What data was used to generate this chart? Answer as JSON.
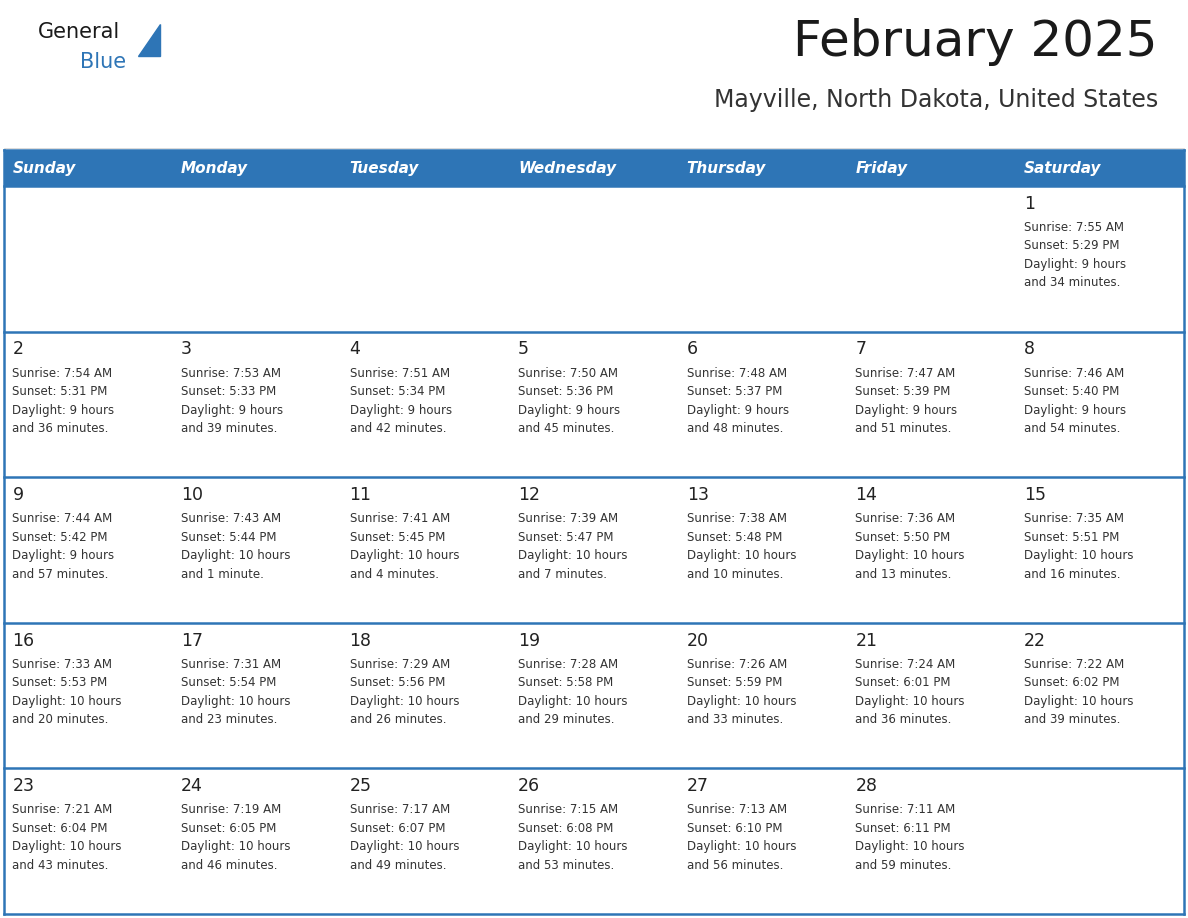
{
  "title": "February 2025",
  "subtitle": "Mayville, North Dakota, United States",
  "days_of_week": [
    "Sunday",
    "Monday",
    "Tuesday",
    "Wednesday",
    "Thursday",
    "Friday",
    "Saturday"
  ],
  "header_bg": "#2E75B6",
  "header_text_color": "#FFFFFF",
  "row_bg": "#FFFFFF",
  "row_bg_first": "#F2F2F2",
  "cell_border_color": "#2E75B6",
  "day_number_color": "#222222",
  "info_text_color": "#333333",
  "title_color": "#1a1a1a",
  "subtitle_color": "#333333",
  "logo_general_color": "#1a1a1a",
  "logo_blue_color": "#2E75B6",
  "background_color": "#FFFFFF",
  "weeks": [
    [
      {
        "day": null,
        "info": null
      },
      {
        "day": null,
        "info": null
      },
      {
        "day": null,
        "info": null
      },
      {
        "day": null,
        "info": null
      },
      {
        "day": null,
        "info": null
      },
      {
        "day": null,
        "info": null
      },
      {
        "day": 1,
        "info": "Sunrise: 7:55 AM\nSunset: 5:29 PM\nDaylight: 9 hours\nand 34 minutes."
      }
    ],
    [
      {
        "day": 2,
        "info": "Sunrise: 7:54 AM\nSunset: 5:31 PM\nDaylight: 9 hours\nand 36 minutes."
      },
      {
        "day": 3,
        "info": "Sunrise: 7:53 AM\nSunset: 5:33 PM\nDaylight: 9 hours\nand 39 minutes."
      },
      {
        "day": 4,
        "info": "Sunrise: 7:51 AM\nSunset: 5:34 PM\nDaylight: 9 hours\nand 42 minutes."
      },
      {
        "day": 5,
        "info": "Sunrise: 7:50 AM\nSunset: 5:36 PM\nDaylight: 9 hours\nand 45 minutes."
      },
      {
        "day": 6,
        "info": "Sunrise: 7:48 AM\nSunset: 5:37 PM\nDaylight: 9 hours\nand 48 minutes."
      },
      {
        "day": 7,
        "info": "Sunrise: 7:47 AM\nSunset: 5:39 PM\nDaylight: 9 hours\nand 51 minutes."
      },
      {
        "day": 8,
        "info": "Sunrise: 7:46 AM\nSunset: 5:40 PM\nDaylight: 9 hours\nand 54 minutes."
      }
    ],
    [
      {
        "day": 9,
        "info": "Sunrise: 7:44 AM\nSunset: 5:42 PM\nDaylight: 9 hours\nand 57 minutes."
      },
      {
        "day": 10,
        "info": "Sunrise: 7:43 AM\nSunset: 5:44 PM\nDaylight: 10 hours\nand 1 minute."
      },
      {
        "day": 11,
        "info": "Sunrise: 7:41 AM\nSunset: 5:45 PM\nDaylight: 10 hours\nand 4 minutes."
      },
      {
        "day": 12,
        "info": "Sunrise: 7:39 AM\nSunset: 5:47 PM\nDaylight: 10 hours\nand 7 minutes."
      },
      {
        "day": 13,
        "info": "Sunrise: 7:38 AM\nSunset: 5:48 PM\nDaylight: 10 hours\nand 10 minutes."
      },
      {
        "day": 14,
        "info": "Sunrise: 7:36 AM\nSunset: 5:50 PM\nDaylight: 10 hours\nand 13 minutes."
      },
      {
        "day": 15,
        "info": "Sunrise: 7:35 AM\nSunset: 5:51 PM\nDaylight: 10 hours\nand 16 minutes."
      }
    ],
    [
      {
        "day": 16,
        "info": "Sunrise: 7:33 AM\nSunset: 5:53 PM\nDaylight: 10 hours\nand 20 minutes."
      },
      {
        "day": 17,
        "info": "Sunrise: 7:31 AM\nSunset: 5:54 PM\nDaylight: 10 hours\nand 23 minutes."
      },
      {
        "day": 18,
        "info": "Sunrise: 7:29 AM\nSunset: 5:56 PM\nDaylight: 10 hours\nand 26 minutes."
      },
      {
        "day": 19,
        "info": "Sunrise: 7:28 AM\nSunset: 5:58 PM\nDaylight: 10 hours\nand 29 minutes."
      },
      {
        "day": 20,
        "info": "Sunrise: 7:26 AM\nSunset: 5:59 PM\nDaylight: 10 hours\nand 33 minutes."
      },
      {
        "day": 21,
        "info": "Sunrise: 7:24 AM\nSunset: 6:01 PM\nDaylight: 10 hours\nand 36 minutes."
      },
      {
        "day": 22,
        "info": "Sunrise: 7:22 AM\nSunset: 6:02 PM\nDaylight: 10 hours\nand 39 minutes."
      }
    ],
    [
      {
        "day": 23,
        "info": "Sunrise: 7:21 AM\nSunset: 6:04 PM\nDaylight: 10 hours\nand 43 minutes."
      },
      {
        "day": 24,
        "info": "Sunrise: 7:19 AM\nSunset: 6:05 PM\nDaylight: 10 hours\nand 46 minutes."
      },
      {
        "day": 25,
        "info": "Sunrise: 7:17 AM\nSunset: 6:07 PM\nDaylight: 10 hours\nand 49 minutes."
      },
      {
        "day": 26,
        "info": "Sunrise: 7:15 AM\nSunset: 6:08 PM\nDaylight: 10 hours\nand 53 minutes."
      },
      {
        "day": 27,
        "info": "Sunrise: 7:13 AM\nSunset: 6:10 PM\nDaylight: 10 hours\nand 56 minutes."
      },
      {
        "day": 28,
        "info": "Sunrise: 7:11 AM\nSunset: 6:11 PM\nDaylight: 10 hours\nand 59 minutes."
      },
      {
        "day": null,
        "info": null
      }
    ]
  ]
}
